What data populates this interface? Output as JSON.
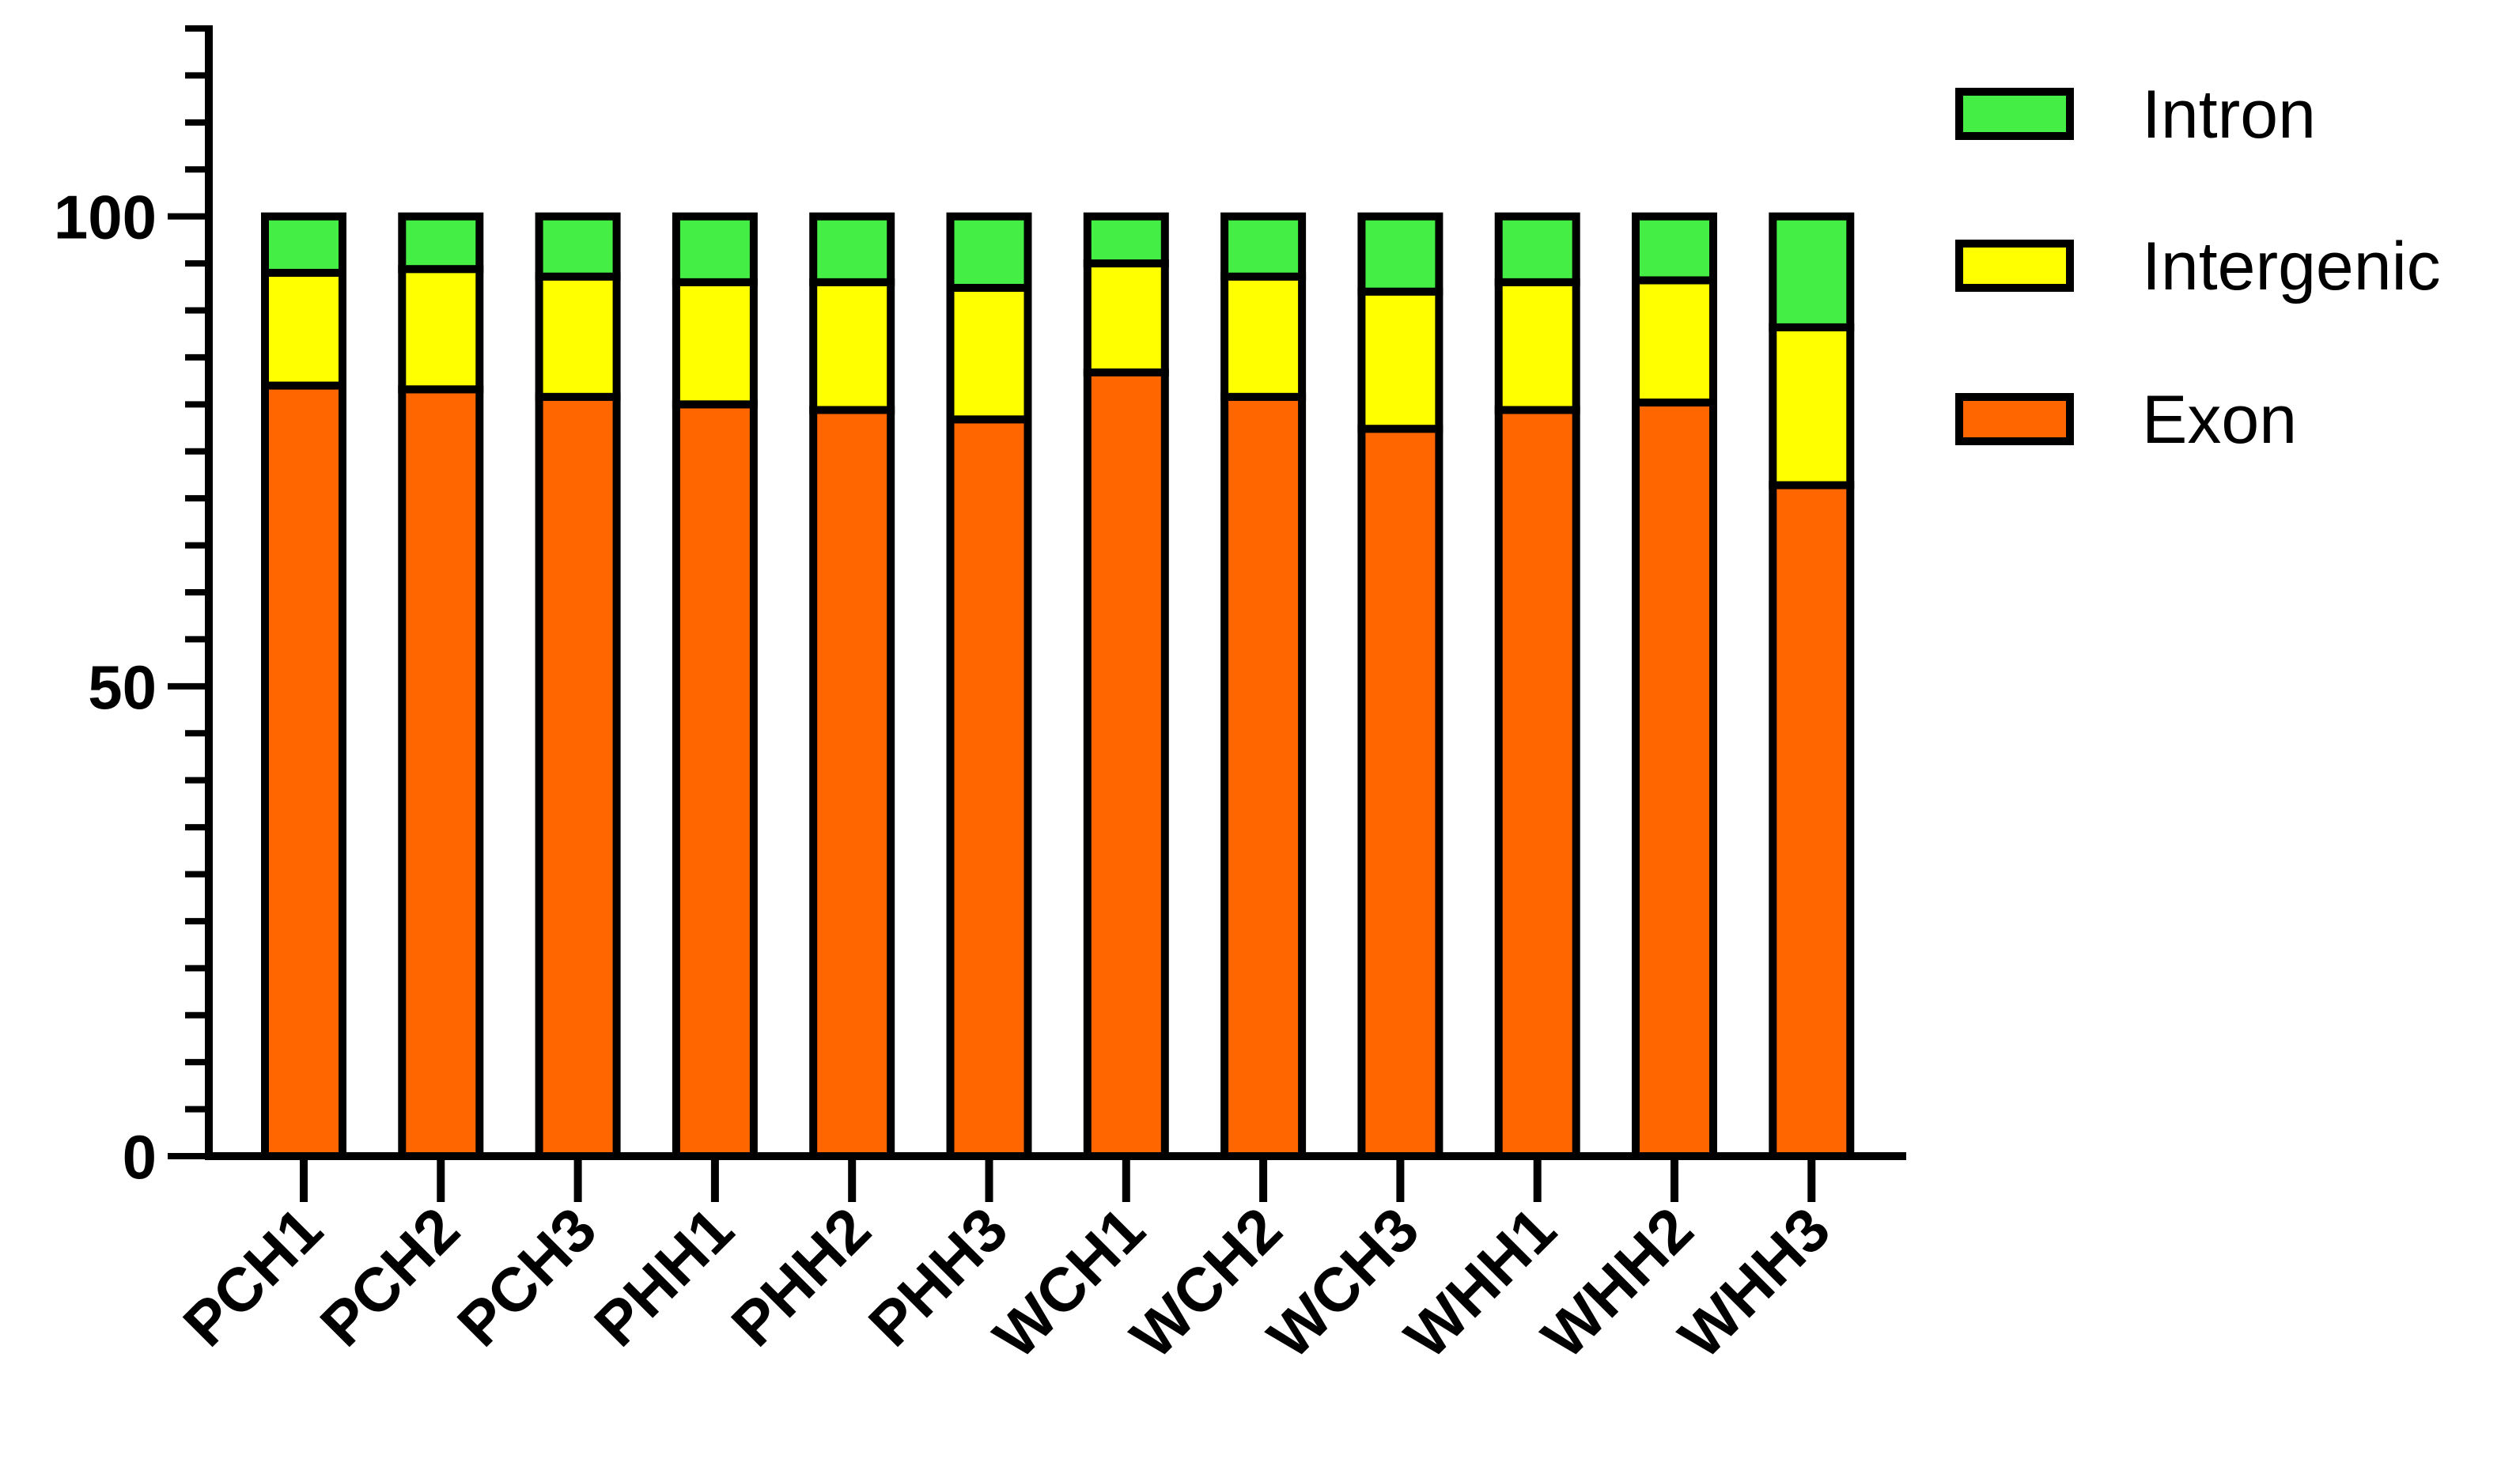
{
  "chart_data": {
    "type": "bar",
    "stacked": true,
    "categories": [
      "PCH1",
      "PCH2",
      "PCH3",
      "PHH1",
      "PHH2",
      "PHH3",
      "WCH1",
      "WCH2",
      "WCH3",
      "WHH1",
      "WHH2",
      "WHH3"
    ],
    "series": [
      {
        "name": "Exon",
        "color": "#ff6600",
        "values": [
          82,
          81.6,
          80.8,
          80,
          79.4,
          78.4,
          83.4,
          80.8,
          77.4,
          79.4,
          80.2,
          71.4
        ]
      },
      {
        "name": "Intergenic",
        "color": "#ffff00",
        "values": [
          12,
          12.8,
          12.8,
          13,
          13.6,
          14,
          11.6,
          12.8,
          14.6,
          13.6,
          13,
          16.8
        ]
      },
      {
        "name": "Intron",
        "color": "#44ee44",
        "values": [
          6,
          5.6,
          6.4,
          7,
          7,
          7.6,
          5,
          6.4,
          8,
          7,
          6.8,
          11.8
        ]
      }
    ],
    "ylim": [
      0,
      120
    ],
    "yticks_labeled": [
      0,
      50,
      100
    ],
    "yminor_step": 5,
    "legend_order": [
      "Intron",
      "Intergenic",
      "Exon"
    ],
    "legend_position": "top-right",
    "grid": false,
    "title": "",
    "xlabel": "",
    "ylabel": ""
  }
}
